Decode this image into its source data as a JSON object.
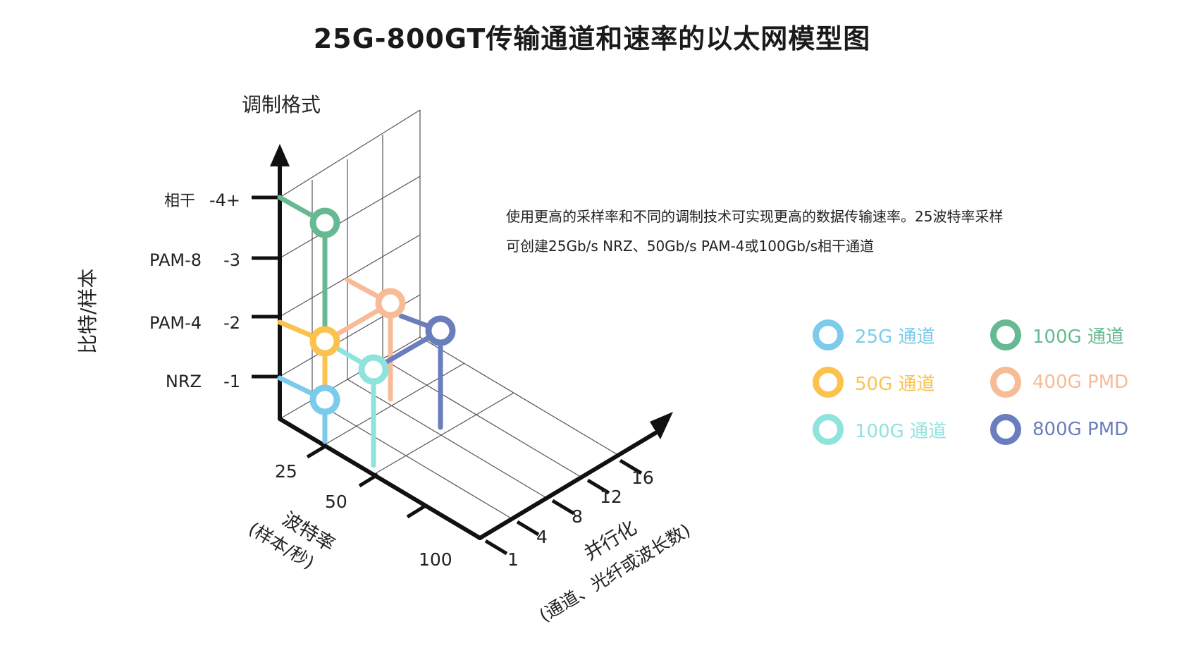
{
  "title": "25G-800GT传输通道和速率的以太网模型图",
  "description": {
    "line1": "使用更高的采样率和不同的调制技术可实现更高的数据传输速率。25波特率采样",
    "line2": "可创建25Gb/s NRZ、50Gb/s PAM-4或100Gb/s相干通道"
  },
  "axes": {
    "modulation": {
      "title": "调制格式",
      "side_label": "比特/样本",
      "ticks": [
        {
          "name": "NRZ",
          "value": "-1"
        },
        {
          "name": "PAM-4",
          "value": "-2"
        },
        {
          "name": "PAM-8",
          "value": "-3"
        },
        {
          "name": "相干",
          "value": "-4+"
        }
      ]
    },
    "baud": {
      "title_line1": "波特率",
      "title_line2": "(样本/秒)",
      "ticks": [
        "25",
        "50",
        "100"
      ]
    },
    "parallel": {
      "title_line1": "并行化",
      "title_line2": "(通道、光纤或波长数)",
      "ticks": [
        "1",
        "4",
        "8",
        "12",
        "16"
      ]
    }
  },
  "legend": [
    {
      "label": "25G 通道",
      "color": "#7ccbea"
    },
    {
      "label": "50G 通道",
      "color": "#fbc24e"
    },
    {
      "label": "100G 通道",
      "color": "#8fe3dd"
    },
    {
      "label": "100G 通道",
      "color": "#66b992"
    },
    {
      "label": "400G PMD",
      "color": "#f7bb98"
    },
    {
      "label": "800G PMD",
      "color": "#6a7dbd"
    }
  ]
}
